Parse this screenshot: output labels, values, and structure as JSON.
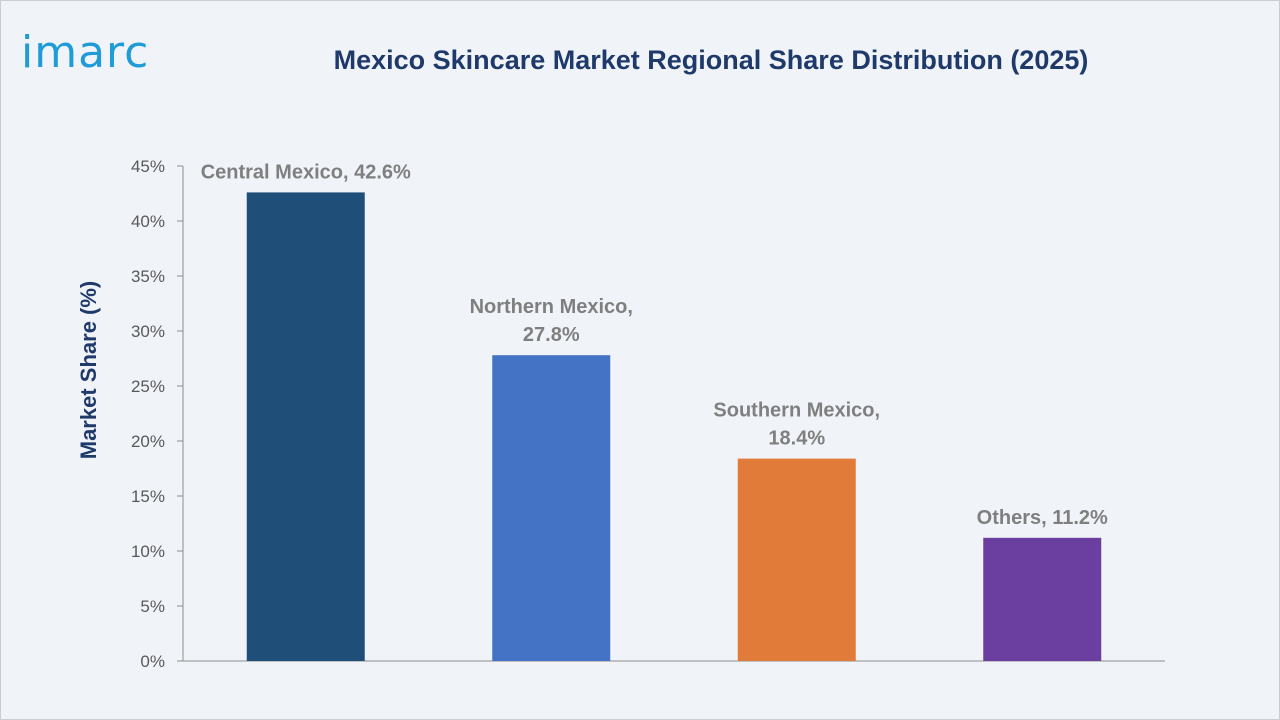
{
  "brand": {
    "logo_text": "imarc"
  },
  "chart_data": {
    "type": "bar",
    "title": "Mexico Skincare Market Regional Share Distribution (2025)",
    "xlabel": "",
    "ylabel": "Market Share (%)",
    "ylim": [
      0,
      45
    ],
    "ytick_step": 5,
    "ytick_labels": [
      "0%",
      "5%",
      "10%",
      "15%",
      "20%",
      "25%",
      "30%",
      "35%",
      "40%",
      "45%"
    ],
    "categories": [
      "Central Mexico",
      "Northern Mexico",
      "Southern Mexico",
      "Others"
    ],
    "values": [
      42.6,
      27.8,
      18.4,
      11.2
    ],
    "data_labels": [
      [
        "Central Mexico, 42.6%"
      ],
      [
        "Northern Mexico,",
        "27.8%"
      ],
      [
        "Southern Mexico,",
        "18.4%"
      ],
      [
        "Others, 11.2%"
      ]
    ],
    "colors": [
      "#1f4e79",
      "#4472c4",
      "#e07b39",
      "#6b3fa0"
    ],
    "grid": false,
    "legend": "none"
  }
}
